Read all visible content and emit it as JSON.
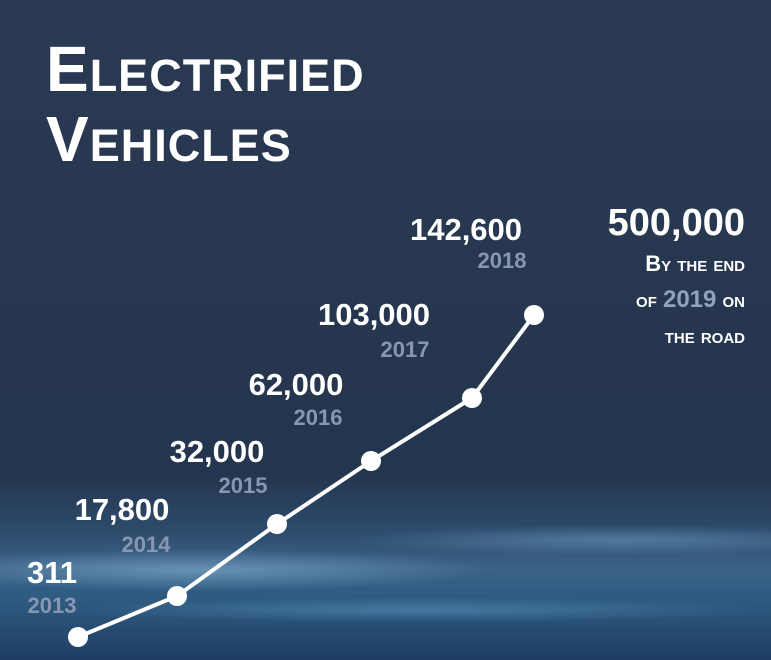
{
  "title_lines": [
    "Electrified",
    "Vehicles"
  ],
  "callout": {
    "value": "500,000",
    "line1": "By the end",
    "line2_prefix": "of ",
    "line2_year": "2019",
    "line2_suffix": " on",
    "line3": "the road"
  },
  "colors": {
    "line": "#ffffff",
    "value_text": "#ffffff",
    "year_text": "#8797b1",
    "background": "#25364e"
  },
  "chart_data": {
    "type": "line",
    "title": "Electrified Vehicles",
    "x": [
      "2013",
      "2014",
      "2015",
      "2016",
      "2017",
      "2018"
    ],
    "values": [
      311,
      17800,
      32000,
      62000,
      103000,
      142600
    ],
    "value_labels": [
      "311",
      "17,800",
      "32,000",
      "62,000",
      "103,000",
      "142,600"
    ],
    "grid": false,
    "legend": "none"
  }
}
